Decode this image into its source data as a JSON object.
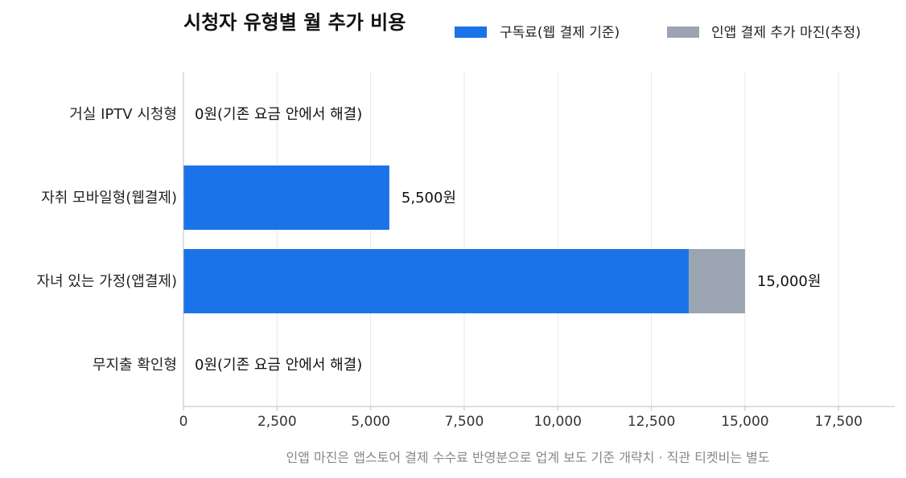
{
  "chart_data": {
    "type": "bar",
    "orientation": "horizontal",
    "stacked": true,
    "title": "시청자 유형별 월 추가 비용",
    "categories": [
      "거실 IPTV 시청형",
      "자취 모바일형(웹결제)",
      "자녀 있는 가정(앱결제)",
      "무지출 확인형"
    ],
    "series": [
      {
        "name": "구독료(웹 결제 기준)",
        "color": "#1a73e8",
        "values": [
          0,
          5500,
          13500,
          0
        ]
      },
      {
        "name": "인앱 결제 추가 마진(추정)",
        "color": "#9aa5b1",
        "values": [
          0,
          0,
          1500,
          0
        ]
      }
    ],
    "data_labels": [
      "0원(기존 요금 안에서 해결)",
      "5,500원",
      "15,000원",
      "0원(기존 요금 안에서 해결)"
    ],
    "xlim": [
      0,
      19000
    ],
    "xticks": [
      0,
      2500,
      5000,
      7500,
      10000,
      12500,
      15000,
      17500
    ],
    "xtick_labels": [
      "0",
      "2,500",
      "5,000",
      "7,500",
      "10,000",
      "12,500",
      "15,000",
      "17,500"
    ],
    "grid": "vertical",
    "legend_position": "top-right",
    "note": "인앱 마진은 앱스토어 결제 수수료 반영분으로 업계 보도 기준 개략치 · 직관 티켓비는 별도"
  }
}
